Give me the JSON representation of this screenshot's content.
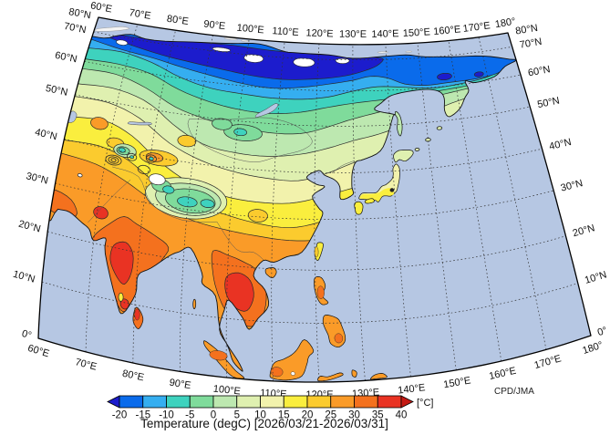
{
  "page": {
    "background": "#ffffff"
  },
  "map": {
    "ocean_color": "#b6c7e3",
    "land_outline_color": "#111111",
    "grid_color": "#333333",
    "ice_color": "#f4f4f4",
    "contour_color": "#2a2a2a",
    "lon_labels": [
      "60°E",
      "70°E",
      "80°E",
      "90°E",
      "100°E",
      "110°E",
      "120°E",
      "130°E",
      "140°E",
      "150°E",
      "160°E",
      "170°E",
      "180°"
    ],
    "lat_labels": [
      "0°",
      "10°N",
      "20°N",
      "30°N",
      "40°N",
      "50°N",
      "60°N",
      "70°N",
      "80°N"
    ]
  },
  "legend": {
    "ticks": [
      "-20",
      "-15",
      "-10",
      "-5",
      "0",
      "5",
      "10",
      "15",
      "20",
      "25",
      "30",
      "35",
      "40"
    ],
    "unit": "[°C]",
    "below_color": "#1c1ccd",
    "above_color": "#c51a14",
    "segment_colors": [
      "#0a6beb",
      "#35aef0",
      "#3ed2be",
      "#7fdb9b",
      "#bde8b0",
      "#dff0b0",
      "#f2f2ac",
      "#faee3e",
      "#fbcb2e",
      "#fa9b28",
      "#f4711e",
      "#e93323"
    ],
    "title": "Temperature (degC) [2026/03/21-2026/03/31]"
  },
  "credit": "CPD/JMA"
}
